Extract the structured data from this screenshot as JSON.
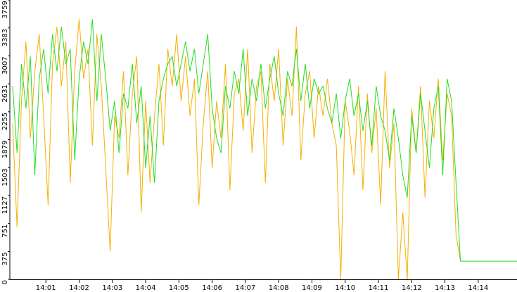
{
  "chart_data": {
    "type": "line",
    "x": [
      0,
      8,
      16,
      24,
      32,
      40,
      48,
      56,
      64,
      72,
      80,
      88,
      96,
      104,
      112,
      120,
      128,
      136,
      144,
      152,
      160,
      168,
      176,
      184,
      192,
      200,
      208,
      216,
      224,
      232,
      240,
      248,
      256,
      264,
      272,
      280,
      288,
      296,
      304,
      312,
      320,
      328,
      336,
      344,
      352,
      360,
      368,
      376,
      384,
      392,
      400,
      408,
      416,
      424,
      432,
      440,
      448,
      456,
      464,
      472,
      480,
      488,
      496,
      504,
      512,
      520,
      528,
      536,
      544,
      552,
      560,
      568,
      576,
      584,
      592,
      600,
      608,
      616,
      624,
      632,
      640,
      648,
      656,
      664,
      672,
      680,
      688,
      696,
      704,
      712,
      720,
      728,
      736,
      744,
      752,
      760,
      768,
      776,
      784,
      792,
      800,
      808,
      910
    ],
    "series": [
      {
        "name": "orange",
        "color": "#f5b000",
        "values": [
          2100,
          700,
          2400,
          3200,
          1900,
          2800,
          3300,
          2200,
          1000,
          2900,
          3400,
          2600,
          3200,
          1300,
          2800,
          3500,
          2700,
          3100,
          1800,
          3300,
          2600,
          1500,
          375,
          2200,
          1900,
          2800,
          1400,
          2500,
          3000,
          900,
          2400,
          1300,
          2200,
          2900,
          1800,
          3100,
          2600,
          3300,
          2400,
          3000,
          2200,
          2700,
          1000,
          2100,
          2800,
          1500,
          2400,
          1900,
          2900,
          1200,
          2500,
          2700,
          2000,
          3100,
          1700,
          2600,
          2800,
          1300,
          2900,
          2400,
          3100,
          1800,
          2700,
          2200,
          3400,
          1600,
          2500,
          2800,
          1900,
          2600,
          2200,
          2700,
          2100,
          1800,
          0,
          2400,
          2000,
          1400,
          2600,
          1200,
          2500,
          1700,
          2300,
          1000,
          2800,
          1500,
          2100,
          0,
          900,
          0,
          2300,
          1700,
          2600,
          1100,
          2400,
          1900,
          2700,
          1600,
          2500,
          2200,
          600,
          245,
          null
        ]
      },
      {
        "name": "green",
        "color": "#22dd22",
        "values": [
          2600,
          1700,
          2900,
          2300,
          3000,
          1400,
          2700,
          3100,
          2500,
          3300,
          2800,
          3400,
          2900,
          3100,
          1600,
          2700,
          3200,
          2900,
          3500,
          2400,
          3300,
          2700,
          2000,
          2400,
          1700,
          2500,
          2300,
          2900,
          2100,
          2600,
          1500,
          2200,
          1300,
          2400,
          2700,
          2900,
          3000,
          2600,
          2900,
          3200,
          2800,
          3100,
          2500,
          2900,
          3300,
          2300,
          1900,
          1700,
          2600,
          2300,
          2800,
          2500,
          3100,
          2200,
          2700,
          2400,
          2900,
          2300,
          2700,
          3000,
          2500,
          2200,
          2800,
          2600,
          3100,
          2400,
          2900,
          2300,
          2700,
          2500,
          2600,
          2300,
          2100,
          2500,
          1900,
          2400,
          2700,
          2200,
          2500,
          2000,
          2400,
          1800,
          2600,
          2200,
          2000,
          1600,
          2300,
          1900,
          1400,
          1100,
          2200,
          1700,
          2500,
          2000,
          1500,
          2300,
          2600,
          1400,
          2700,
          2400,
          1300,
          245,
          245
        ]
      }
    ],
    "xlim": [
      -5,
      910
    ],
    "xticks": [
      {
        "value": 60,
        "label": "14:01"
      },
      {
        "value": 120,
        "label": "14:02"
      },
      {
        "value": 180,
        "label": "14:03"
      },
      {
        "value": 240,
        "label": "14:04"
      },
      {
        "value": 300,
        "label": "14:05"
      },
      {
        "value": 360,
        "label": "14:06"
      },
      {
        "value": 420,
        "label": "14:07"
      },
      {
        "value": 480,
        "label": "14:08"
      },
      {
        "value": 540,
        "label": "14:09"
      },
      {
        "value": 600,
        "label": "14:10"
      },
      {
        "value": 660,
        "label": "14:11"
      },
      {
        "value": 720,
        "label": "14:12"
      },
      {
        "value": 780,
        "label": "14:13"
      },
      {
        "value": 840,
        "label": "14:14"
      }
    ],
    "ylim": [
      0,
      3759
    ],
    "yticks": [
      0,
      375,
      751,
      1127,
      1503,
      1879,
      2255,
      2631,
      3007,
      3383,
      3759
    ]
  }
}
